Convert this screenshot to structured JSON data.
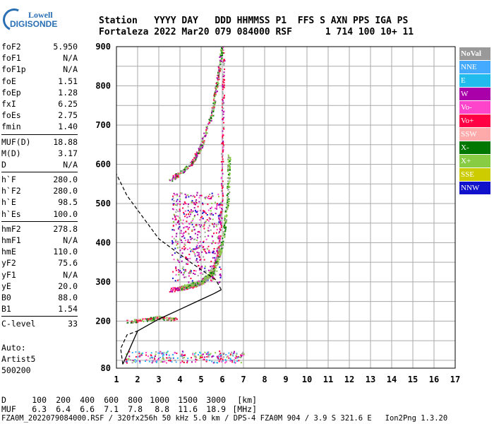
{
  "logo": {
    "line1": "Lowell",
    "line2": "DIGISONDE"
  },
  "header": {
    "row1": "Station   YYYY DAY   DDD HHMMSS P1  FFS S AXN PPS IGA PS",
    "row2": "Fortaleza 2022 Mar20 079 084000 RSF      1 714 100 10+ 11"
  },
  "params": [
    {
      "label": "foF2",
      "value": "5.950"
    },
    {
      "label": "foF1",
      "value": "N/A"
    },
    {
      "label": "foF1p",
      "value": "N/A"
    },
    {
      "label": "foE",
      "value": "1.51"
    },
    {
      "label": "foEp",
      "value": "1.28"
    },
    {
      "label": "fxI",
      "value": "6.25"
    },
    {
      "label": "foEs",
      "value": "2.75"
    },
    {
      "label": "fmin",
      "value": "1.40"
    },
    {
      "sep": true
    },
    {
      "label": "MUF(D)",
      "value": "18.88"
    },
    {
      "label": "M(D)",
      "value": "3.17"
    },
    {
      "label": "D",
      "value": "N/A"
    },
    {
      "sep": true
    },
    {
      "label": "h`F",
      "value": "280.0"
    },
    {
      "label": "h`F2",
      "value": "280.0"
    },
    {
      "label": "h`E",
      "value": "98.5"
    },
    {
      "label": "h`Es",
      "value": "100.0"
    },
    {
      "sep": true
    },
    {
      "label": "hmF2",
      "value": "278.8"
    },
    {
      "label": "hmF1",
      "value": "N/A"
    },
    {
      "label": "hmE",
      "value": "110.0"
    },
    {
      "label": "yF2",
      "value": "75.6"
    },
    {
      "label": "yF1",
      "value": "N/A"
    },
    {
      "label": "yE",
      "value": "20.0"
    },
    {
      "label": "B0",
      "value": "88.0"
    },
    {
      "label": "B1",
      "value": "1.54"
    },
    {
      "sep": true
    },
    {
      "label": "C-level",
      "value": "33"
    }
  ],
  "auto": {
    "line1": "Auto:",
    "line2": "Artist5",
    "line3": "500200"
  },
  "legend": [
    {
      "label": "NoVal",
      "color": "#999999"
    },
    {
      "label": "NNE",
      "color": "#44aaff"
    },
    {
      "label": "E",
      "color": "#22bbee"
    },
    {
      "label": "W",
      "color": "#aa00aa"
    },
    {
      "label": "Vo-",
      "color": "#ff44cc"
    },
    {
      "label": "Vo+",
      "color": "#ff0044"
    },
    {
      "label": "SSW",
      "color": "#ffaaaa"
    },
    {
      "label": "X-",
      "color": "#007700"
    },
    {
      "label": "X+",
      "color": "#88cc44"
    },
    {
      "label": "SSE",
      "color": "#cccc00"
    },
    {
      "label": "NNW",
      "color": "#1111cc"
    }
  ],
  "bottom": {
    "row1_label": "D",
    "row1_values": [
      "100",
      "200",
      "400",
      "600",
      "800",
      "1000",
      "1500",
      "3000",
      "[km]"
    ],
    "row2_label": "MUF",
    "row2_values": [
      "6.3",
      "6.4",
      "6.6",
      "7.1",
      "7.8",
      "8.8",
      "11.6",
      "18.9",
      "[MHz]"
    ],
    "footer": "FZA0M_2022079084000.RSF / 320fx256h 50 kHz 5.0 km / DPS-4 FZA0M 904 / 3.9 S 321.6 E   Ion2Png 1.3.20"
  },
  "chart_data": {
    "type": "scatter",
    "xlim": [
      1,
      17
    ],
    "ylim": [
      80,
      900
    ],
    "xticks": [
      "1",
      "2",
      "3",
      "4",
      "5",
      "6",
      "7",
      "8",
      "9",
      "10",
      "11",
      "12",
      "13",
      "14",
      "15",
      "16",
      "17"
    ],
    "yticks": [
      "80",
      "200",
      "300",
      "400",
      "500",
      "600",
      "700",
      "800",
      "900"
    ],
    "grid": true,
    "legend_position": "right",
    "profile": [
      [
        1.3,
        90
      ],
      [
        2.0,
        175
      ],
      [
        3.0,
        205
      ],
      [
        4.0,
        230
      ],
      [
        5.0,
        255
      ],
      [
        5.6,
        270
      ],
      [
        5.95,
        280
      ]
    ],
    "profile_dashed_upper": [
      [
        5.95,
        280
      ],
      [
        5.7,
        305
      ],
      [
        4.5,
        350
      ],
      [
        3.0,
        410
      ],
      [
        1.5,
        520
      ],
      [
        1.0,
        575
      ]
    ],
    "profile_dashed_lower": [
      [
        1.3,
        90
      ],
      [
        1.2,
        130
      ],
      [
        1.5,
        165
      ],
      [
        2.0,
        175
      ]
    ],
    "o_trace": [
      [
        3.5,
        280
      ],
      [
        4.5,
        290
      ],
      [
        5.0,
        300
      ],
      [
        5.5,
        320
      ],
      [
        5.8,
        380
      ],
      [
        5.95,
        500
      ],
      [
        6.0,
        700
      ],
      [
        6.05,
        900
      ]
    ],
    "x_trace": [
      [
        4.0,
        285
      ],
      [
        5.0,
        300
      ],
      [
        5.6,
        330
      ],
      [
        6.0,
        400
      ],
      [
        6.25,
        520
      ],
      [
        6.3,
        620
      ]
    ],
    "e_trace": [
      [
        1.5,
        200
      ],
      [
        2.5,
        205
      ],
      [
        3.0,
        210
      ],
      [
        3.8,
        205
      ]
    ],
    "multi_hop": [
      [
        3.5,
        560
      ],
      [
        4.5,
        600
      ],
      [
        5.0,
        650
      ],
      [
        5.5,
        730
      ],
      [
        5.8,
        830
      ],
      [
        5.95,
        900
      ]
    ],
    "spread_f": {
      "x_range": [
        3.6,
        5.9
      ],
      "y_range": [
        300,
        530
      ]
    },
    "es_layer": {
      "x_range": [
        1.4,
        7.0
      ],
      "y_range": [
        95,
        125
      ]
    }
  }
}
